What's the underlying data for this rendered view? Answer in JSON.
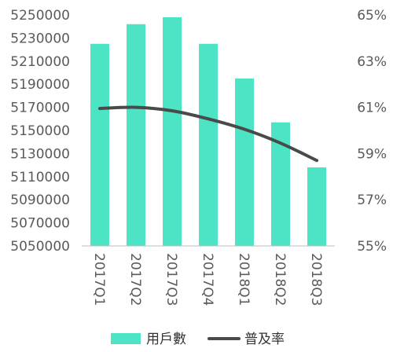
{
  "chart_data": {
    "type": "bar",
    "categories": [
      "2017Q1",
      "2017Q2",
      "2017Q3",
      "2017Q4",
      "2018Q1",
      "2018Q2",
      "2018Q3"
    ],
    "series": [
      {
        "name": "用戶數",
        "type": "bar",
        "axis": "left",
        "color": "#4de3c5",
        "values": [
          5225000,
          5242000,
          5248000,
          5225000,
          5195000,
          5157000,
          5118000
        ]
      },
      {
        "name": "普及率",
        "type": "line",
        "axis": "right",
        "color": "#4a4a4a",
        "values": [
          60.95,
          61.0,
          60.85,
          60.5,
          60.05,
          59.45,
          58.7
        ]
      }
    ],
    "y_left": {
      "ylim": [
        5050000,
        5250000
      ],
      "ticks": [
        "5250000",
        "5230000",
        "5210000",
        "5190000",
        "5170000",
        "5150000",
        "5130000",
        "5110000",
        "5090000",
        "5070000",
        "5050000"
      ],
      "tick_values": [
        5250000,
        5230000,
        5210000,
        5190000,
        5170000,
        5150000,
        5130000,
        5110000,
        5090000,
        5070000,
        5050000
      ]
    },
    "y_right": {
      "ylim": [
        55,
        65
      ],
      "ticks": [
        "65%",
        "63%",
        "61%",
        "59%",
        "57%",
        "55%"
      ],
      "tick_values": [
        65,
        63,
        61,
        59,
        57,
        55
      ]
    },
    "grid": false,
    "legend": "bottom"
  }
}
